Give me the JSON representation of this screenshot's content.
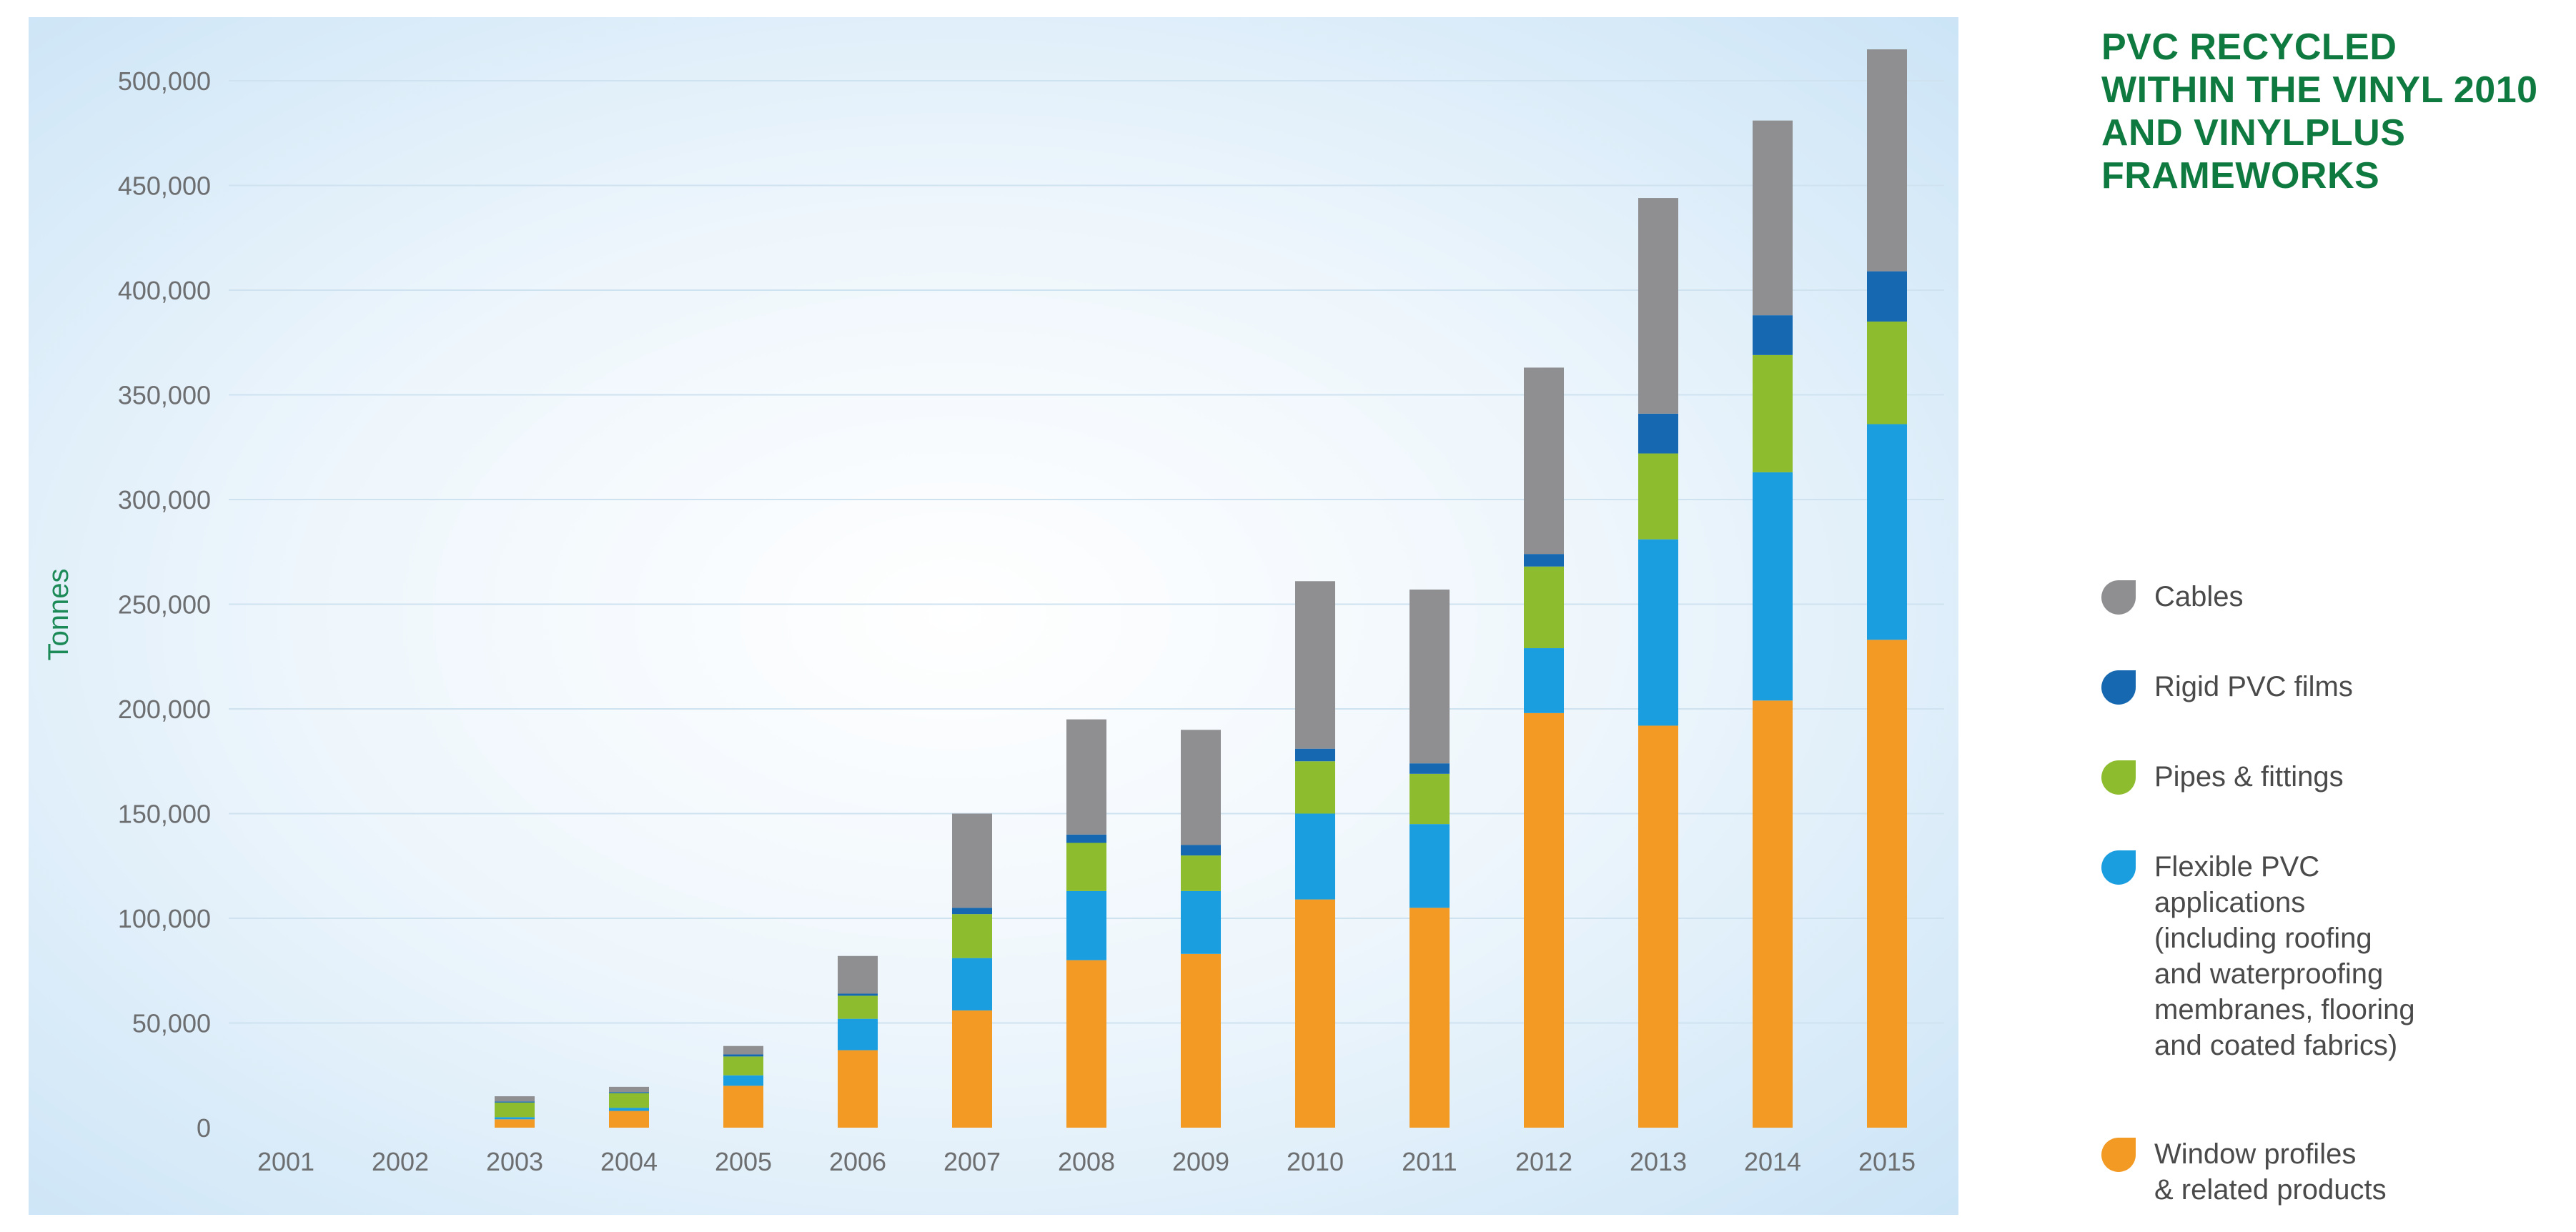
{
  "title_lines": [
    "PVC RECYCLED",
    "WITHIN THE VINYL 2010",
    "AND VINYLPLUS",
    "FRAMEWORKS"
  ],
  "colors": {
    "title": "#0f7a3f",
    "cables": "#8f8f91",
    "rigid": "#1668b0",
    "pipes": "#8dbd2e",
    "flexible": "#1a9ee0",
    "window": "#f39a24"
  },
  "legend": [
    {
      "key": "cables",
      "lines": [
        "Cables"
      ]
    },
    {
      "key": "rigid",
      "lines": [
        "Rigid PVC films"
      ]
    },
    {
      "key": "pipes",
      "lines": [
        "Pipes & fittings"
      ]
    },
    {
      "key": "flexible",
      "lines": [
        "Flexible PVC",
        "applications",
        "(including roofing",
        "and waterproofing",
        "membranes, flooring",
        "and coated fabrics)"
      ]
    },
    {
      "key": "window",
      "lines": [
        "Window profiles",
        "& related products"
      ]
    }
  ],
  "chart_data": {
    "type": "bar",
    "stacked": true,
    "title": "PVC RECYCLED WITHIN THE VINYL 2010 AND VINYLPLUS FRAMEWORKS",
    "xlabel": "",
    "ylabel": "Tonnes",
    "ylim": [
      0,
      500000
    ],
    "yticks": [
      0,
      50000,
      100000,
      150000,
      200000,
      250000,
      300000,
      350000,
      400000,
      450000,
      500000
    ],
    "ytick_labels": [
      "0",
      "50,000",
      "100,000",
      "150,000",
      "200,000",
      "250,000",
      "300,000",
      "350,000",
      "400,000",
      "450,000",
      "500,000"
    ],
    "legend_position": "right",
    "categories": [
      "2001",
      "2002",
      "2003",
      "2004",
      "2005",
      "2006",
      "2007",
      "2008",
      "2009",
      "2010",
      "2011",
      "2012",
      "2013",
      "2014",
      "2015"
    ],
    "series": [
      {
        "key": "window",
        "name": "Window profiles & related products",
        "values": [
          0,
          0,
          4000,
          8000,
          20000,
          37000,
          56000,
          80000,
          83000,
          109000,
          105000,
          198000,
          192000,
          204000,
          233000
        ]
      },
      {
        "key": "flexible",
        "name": "Flexible PVC applications (including roofing and waterproofing membranes, flooring and coated fabrics)",
        "values": [
          0,
          0,
          1000,
          1500,
          5000,
          15000,
          25000,
          33000,
          30000,
          41000,
          40000,
          31000,
          89000,
          109000,
          103000
        ]
      },
      {
        "key": "pipes",
        "name": "Pipes & fittings",
        "values": [
          0,
          0,
          7000,
          7000,
          9000,
          11000,
          21000,
          23000,
          17000,
          25000,
          24000,
          39000,
          41000,
          56000,
          49000
        ]
      },
      {
        "key": "rigid",
        "name": "Rigid PVC films",
        "values": [
          0,
          0,
          500,
          500,
          1000,
          1000,
          3000,
          4000,
          5000,
          6000,
          5000,
          6000,
          19000,
          19000,
          24000
        ]
      },
      {
        "key": "cables",
        "name": "Cables",
        "values": [
          0,
          0,
          2500,
          2500,
          4000,
          18000,
          45000,
          55000,
          55000,
          80000,
          83000,
          89000,
          103000,
          93000,
          106000
        ]
      }
    ]
  }
}
